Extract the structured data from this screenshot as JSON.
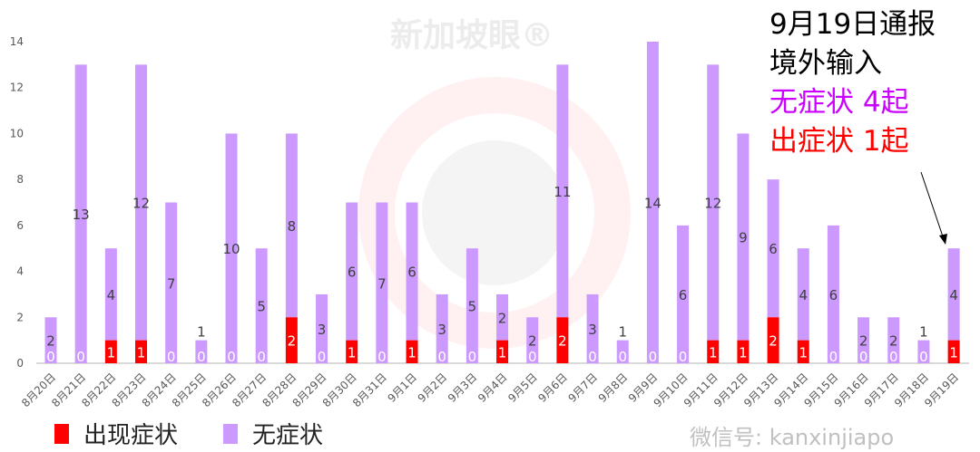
{
  "chart_data": {
    "type": "bar",
    "stacked": true,
    "categories": [
      "8月20日",
      "8月21日",
      "8月22日",
      "8月23日",
      "8月24日",
      "8月25日",
      "8月26日",
      "8月27日",
      "8月28日",
      "8月29日",
      "8月30日",
      "8月31日",
      "9月1日",
      "9月2日",
      "9月3日",
      "9月4日",
      "9月5日",
      "9月6日",
      "9月7日",
      "9月8日",
      "9月9日",
      "9月10日",
      "9月11日",
      "9月12日",
      "9月13日",
      "9月14日",
      "9月15日",
      "9月16日",
      "9月17日",
      "9月18日",
      "9月19日"
    ],
    "series": [
      {
        "name": "出现症状",
        "color": "#ff0000",
        "values": [
          0,
          0,
          1,
          1,
          0,
          0,
          0,
          0,
          2,
          0,
          1,
          0,
          1,
          0,
          0,
          1,
          0,
          2,
          0,
          0,
          0,
          0,
          1,
          1,
          2,
          1,
          0,
          0,
          0,
          0,
          1
        ]
      },
      {
        "name": "无症状",
        "color": "#cc99ff",
        "values": [
          2,
          13,
          4,
          12,
          7,
          1,
          10,
          5,
          8,
          3,
          6,
          7,
          6,
          3,
          5,
          2,
          2,
          11,
          3,
          1,
          14,
          6,
          12,
          9,
          6,
          4,
          6,
          2,
          2,
          1,
          4
        ]
      }
    ],
    "ylim": [
      0,
      14
    ],
    "yticks": [
      0,
      2,
      4,
      6,
      8,
      10,
      12,
      14
    ],
    "grid": false,
    "legend_position": "bottom-left",
    "annotation": {
      "lines": [
        "9月19日通报",
        "境外输入",
        "无症状 4起",
        "出症状 1起"
      ],
      "colors": [
        "#000000",
        "#000000",
        "#cc00ff",
        "#ff0000"
      ]
    }
  },
  "watermarks": {
    "top": "新加坡眼®",
    "bottom": "微信号: kanxinjiapo"
  }
}
